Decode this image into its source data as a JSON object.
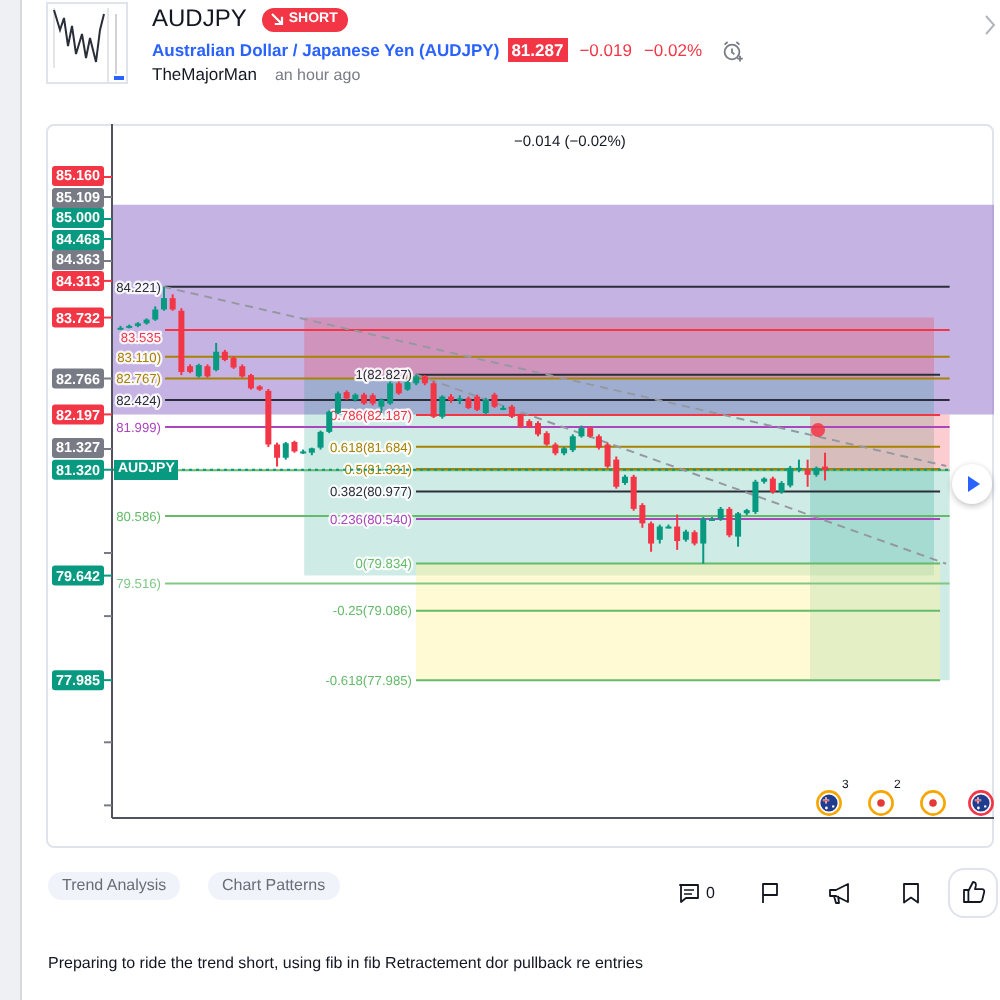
{
  "chart_data": {
    "type": "candlestick",
    "title": "AUDJPY",
    "subtitle": "Australian Dollar / Japanese Yen (AUDJPY)",
    "annotations": [
      "SHORT",
      "81.287",
      "−0.019",
      "−0.02%",
      "TheMajorMan",
      "an hour ago",
      "−0.014 (−0.02%)",
      {
        "text": "AUDJPY",
        "y": 81.32
      },
      "3",
      "2",
      "Trend Analysis",
      "Chart Patterns",
      "0",
      "Preparing to ride the trend short, using fib in fib Retractement dor pullback re entries",
      "85.160",
      "85.109",
      "85.000",
      "84.468",
      "84.363",
      "81.327"
    ],
    "categories": [
      null,
      null,
      null,
      null,
      null,
      null,
      null,
      null,
      null,
      null,
      null,
      null,
      null,
      null,
      null,
      null,
      null,
      null,
      null,
      null,
      null,
      null,
      null,
      null,
      null,
      null,
      null,
      null,
      null,
      null,
      null,
      null,
      null,
      null,
      null,
      null,
      null,
      null,
      null,
      null,
      null,
      null,
      null,
      null,
      null,
      null,
      null,
      null,
      null,
      null,
      null,
      null,
      null,
      null,
      null,
      null,
      null,
      null,
      null,
      null,
      null,
      null,
      null,
      null,
      null,
      null,
      null,
      null,
      null,
      null,
      null,
      null,
      null,
      null,
      null,
      null,
      null,
      null,
      null,
      null,
      null,
      null,
      null,
      null,
      null,
      null,
      null,
      null,
      null,
      null,
      null,
      null,
      null,
      null,
      null,
      null,
      null,
      null,
      null,
      null,
      null
    ],
    "ohlc": [
      [
        83.57,
        83.6,
        83.54,
        83.57
      ],
      [
        83.59,
        83.62,
        83.56,
        83.6
      ],
      [
        83.6,
        83.66,
        83.58,
        83.64
      ],
      [
        83.64,
        83.72,
        83.62,
        83.7
      ],
      [
        83.7,
        83.91,
        83.68,
        83.86
      ],
      [
        83.86,
        84.22,
        83.84,
        84.04
      ],
      [
        84.04,
        84.1,
        83.84,
        83.86
      ],
      [
        83.84,
        83.88,
        82.82,
        82.87
      ],
      [
        82.96,
        82.99,
        82.85,
        82.87
      ],
      [
        82.8,
        83.0,
        82.78,
        82.98
      ],
      [
        82.96,
        82.99,
        82.78,
        82.8
      ],
      [
        82.9,
        83.33,
        82.88,
        83.19
      ],
      [
        83.19,
        83.22,
        83.04,
        83.06
      ],
      [
        83.09,
        83.12,
        82.92,
        82.94
      ],
      [
        82.96,
        82.99,
        82.78,
        82.8
      ],
      [
        82.82,
        82.84,
        82.59,
        82.61
      ],
      [
        82.64,
        82.66,
        82.57,
        82.59
      ],
      [
        82.57,
        82.6,
        81.68,
        81.72
      ],
      [
        81.72,
        81.75,
        81.37,
        81.51
      ],
      [
        81.51,
        81.76,
        81.48,
        81.74
      ],
      [
        81.76,
        81.78,
        81.59,
        81.61
      ],
      [
        81.61,
        81.64,
        81.57,
        81.61
      ],
      [
        81.59,
        81.67,
        81.55,
        81.66
      ],
      [
        81.67,
        81.94,
        81.64,
        81.92
      ],
      [
        81.92,
        82.26,
        81.9,
        82.24
      ],
      [
        82.22,
        82.56,
        82.2,
        82.53
      ],
      [
        82.55,
        82.58,
        82.43,
        82.45
      ],
      [
        82.43,
        82.53,
        82.4,
        82.51
      ],
      [
        82.51,
        82.54,
        82.35,
        82.37
      ],
      [
        82.5,
        82.53,
        82.34,
        82.37
      ],
      [
        82.32,
        82.45,
        82.22,
        82.43
      ],
      [
        82.37,
        82.72,
        82.35,
        82.69
      ],
      [
        82.69,
        82.72,
        82.51,
        82.53
      ],
      [
        82.59,
        82.73,
        82.57,
        82.71
      ],
      [
        82.69,
        82.83,
        82.66,
        82.8
      ],
      [
        82.8,
        82.82,
        82.66,
        82.69
      ],
      [
        82.69,
        82.72,
        82.14,
        82.16
      ],
      [
        82.16,
        82.5,
        82.13,
        82.48
      ],
      [
        82.48,
        82.52,
        82.38,
        82.42
      ],
      [
        82.42,
        82.5,
        82.36,
        82.45
      ],
      [
        82.45,
        82.48,
        82.28,
        82.3
      ],
      [
        82.48,
        82.51,
        82.25,
        82.27
      ],
      [
        82.22,
        82.46,
        82.2,
        82.43
      ],
      [
        82.51,
        82.54,
        82.3,
        82.32
      ],
      [
        82.3,
        82.34,
        82.27,
        82.3
      ],
      [
        82.32,
        82.35,
        82.14,
        82.16
      ],
      [
        82.18,
        82.21,
        81.98,
        82.0
      ],
      [
        82.09,
        82.12,
        81.98,
        82.0
      ],
      [
        82.06,
        82.09,
        81.85,
        81.88
      ],
      [
        81.9,
        81.93,
        81.7,
        81.72
      ],
      [
        81.72,
        81.75,
        81.55,
        81.58
      ],
      [
        81.58,
        81.68,
        81.55,
        81.66
      ],
      [
        81.63,
        81.88,
        81.6,
        81.85
      ],
      [
        81.85,
        82.02,
        81.83,
        81.98
      ],
      [
        81.98,
        82.01,
        81.83,
        81.85
      ],
      [
        81.85,
        81.88,
        81.64,
        81.67
      ],
      [
        81.72,
        81.75,
        81.35,
        81.37
      ],
      [
        81.48,
        81.53,
        81.02,
        81.05
      ],
      [
        81.11,
        81.24,
        81.08,
        81.21
      ],
      [
        81.21,
        81.24,
        80.67,
        80.7
      ],
      [
        80.76,
        80.79,
        80.4,
        80.47
      ],
      [
        80.47,
        80.5,
        80.02,
        80.15
      ],
      [
        80.21,
        80.45,
        80.15,
        80.42
      ],
      [
        80.42,
        80.45,
        80.39,
        80.42
      ],
      [
        80.42,
        80.61,
        80.05,
        80.19
      ],
      [
        80.21,
        80.37,
        80.18,
        80.34
      ],
      [
        80.33,
        80.36,
        80.12,
        80.15
      ],
      [
        80.15,
        80.57,
        79.83,
        80.54
      ],
      [
        80.54,
        80.57,
        80.51,
        80.54
      ],
      [
        80.54,
        80.73,
        80.51,
        80.7
      ],
      [
        80.7,
        80.73,
        80.25,
        80.28
      ],
      [
        80.26,
        80.65,
        80.1,
        80.63
      ],
      [
        80.63,
        80.7,
        80.6,
        80.68
      ],
      [
        80.65,
        81.16,
        80.62,
        81.13
      ],
      [
        81.13,
        81.2,
        81.1,
        81.18
      ],
      [
        81.18,
        81.21,
        80.94,
        80.97
      ],
      [
        80.97,
        81.14,
        80.94,
        81.11
      ],
      [
        81.07,
        81.38,
        81.04,
        81.35
      ],
      [
        81.35,
        81.48,
        81.28,
        81.35
      ],
      [
        81.32,
        81.48,
        81.05,
        81.24
      ],
      [
        81.24,
        81.37,
        81.21,
        81.35
      ],
      [
        81.37,
        81.59,
        81.15,
        81.32
      ],
      null,
      null,
      null,
      null,
      null,
      null,
      null,
      null,
      null,
      null,
      null,
      null,
      null,
      null,
      null,
      null,
      null,
      null,
      null
    ],
    "colors": [
      "#089981",
      "#089981",
      "#089981",
      "#089981",
      "#089981",
      "#089981",
      "#f23645",
      "#f23645",
      "#f23645",
      "#089981",
      "#f23645",
      "#089981",
      "#f23645",
      "#f23645",
      "#f23645",
      "#f23645",
      "#f23645",
      "#f23645",
      "#f23645",
      "#089981",
      "#f23645",
      "#089981",
      "#089981",
      "#089981",
      "#089981",
      "#089981",
      "#f23645",
      "#089981",
      "#f23645",
      "#f23645",
      "#089981",
      "#089981",
      "#f23645",
      "#089981",
      "#089981",
      "#f23645",
      "#f23645",
      "#089981",
      "#f23645",
      "#089981",
      "#f23645",
      "#f23645",
      "#089981",
      "#f23645",
      "#089981",
      "#f23645",
      "#f23645",
      "#f23645",
      "#f23645",
      "#f23645",
      "#f23645",
      "#089981",
      "#089981",
      "#089981",
      "#f23645",
      "#f23645",
      "#f23645",
      "#f23645",
      "#089981",
      "#f23645",
      "#f23645",
      "#f23645",
      "#089981",
      "#089981",
      "#f23645",
      "#089981",
      "#f23645",
      "#089981",
      "#089981",
      "#089981",
      "#f23645",
      "#089981",
      "#089981",
      "#089981",
      "#089981",
      "#f23645",
      "#089981",
      "#089981",
      "#089981",
      "#f23645",
      "#089981",
      "#f23645",
      null,
      null,
      null,
      null,
      null,
      null,
      null,
      null,
      null,
      null,
      null,
      null,
      null,
      null,
      null,
      null,
      null,
      null,
      null
    ],
    "series": [
      {
        "type": "line",
        "color": "#9598a1",
        "line_style": "dashed",
        "values": [
          null,
          null,
          null,
          null,
          null,
          84.22,
          null,
          null,
          null,
          null,
          null,
          null,
          null,
          null,
          null,
          null,
          null,
          null,
          null,
          null,
          null,
          null,
          null,
          null,
          null,
          null,
          null,
          null,
          null,
          null,
          null,
          null,
          null,
          null,
          null,
          null,
          null,
          null,
          null,
          null,
          null,
          null,
          null,
          null,
          null,
          null,
          null,
          null,
          null,
          null,
          null,
          null,
          null,
          null,
          null,
          null,
          null,
          null,
          null,
          null,
          null,
          null,
          null,
          null,
          null,
          null,
          null,
          null,
          null,
          null,
          null,
          null,
          null,
          null,
          null,
          null,
          null,
          null,
          null,
          null,
          null,
          null,
          null,
          null,
          null,
          null,
          null,
          null,
          null,
          null,
          null,
          null,
          null,
          null,
          null,
          81.38,
          null,
          null,
          null,
          null,
          null
        ]
      },
      {
        "type": "line",
        "color": "#9598a1",
        "line_style": "dashed",
        "values": [
          null,
          null,
          null,
          null,
          null,
          null,
          null,
          null,
          null,
          null,
          null,
          null,
          null,
          null,
          null,
          null,
          null,
          null,
          null,
          null,
          null,
          null,
          null,
          null,
          null,
          null,
          null,
          null,
          null,
          null,
          null,
          null,
          null,
          null,
          82.83,
          null,
          null,
          null,
          null,
          null,
          null,
          null,
          null,
          null,
          null,
          null,
          null,
          null,
          null,
          null,
          null,
          null,
          null,
          null,
          null,
          null,
          null,
          null,
          null,
          null,
          null,
          null,
          null,
          null,
          null,
          null,
          null,
          null,
          null,
          null,
          null,
          null,
          null,
          null,
          null,
          null,
          null,
          null,
          null,
          null,
          null,
          null,
          null,
          null,
          null,
          null,
          null,
          null,
          null,
          null,
          null,
          null,
          null,
          null,
          null,
          79.83,
          null,
          null,
          null,
          null,
          null
        ]
      }
    ],
    "ylim": [
      75.8,
      86.8
    ],
    "yticks": [
      {
        "value": 84.313,
        "label": "84.313"
      },
      {
        "value": 83.732,
        "label": "83.732"
      },
      {
        "value": 82.766,
        "label": "82.766"
      },
      {
        "value": 82.197,
        "label": "82.197"
      },
      {
        "value": 81.32,
        "label": "81.320"
      },
      {
        "value": 80,
        "label": null
      },
      {
        "value": 79.642,
        "label": "79.642"
      },
      {
        "value": 79,
        "label": null
      },
      {
        "value": 77.985,
        "label": "77.985"
      },
      {
        "value": 77,
        "label": null
      },
      {
        "value": 76,
        "label": null
      }
    ],
    "tick_labels": "y",
    "ref_lines": [
      {
        "axis": "y",
        "value": 84.221,
        "label": "84.221)",
        "color": "#2a2e39"
      },
      {
        "axis": "y",
        "value": 83.535,
        "label": "83.535",
        "color": "#f23645"
      },
      {
        "axis": "y",
        "value": 83.11,
        "label": "83.110)",
        "color": "#a88200"
      },
      {
        "axis": "y",
        "value": 82.767,
        "label": "82.767)",
        "color": "#a88200"
      },
      {
        "axis": "y",
        "value": 82.424,
        "label": "82.424)",
        "color": "#2a2e39"
      },
      {
        "axis": "y",
        "value": 81.999,
        "label": "81.999)",
        "color": "#ab47bc"
      },
      {
        "axis": "y",
        "value": 81.313,
        "color": "#66bb6a"
      },
      {
        "axis": "y",
        "value": 80.586,
        "label": "80.586)",
        "color": "#66bb6a"
      },
      {
        "axis": "y",
        "value": 79.516,
        "label": "79.516)",
        "color": "#81c784"
      },
      {
        "axis": "y",
        "value": 82.827,
        "label": "1(82.827)",
        "color": "#2a2e39"
      },
      {
        "axis": "y",
        "value": 82.187,
        "label": "0.786(82.187)",
        "color": "#f23645"
      },
      {
        "axis": "y",
        "value": 81.684,
        "label": "0.618(81.684)",
        "color": "#a88200"
      },
      {
        "axis": "y",
        "value": 81.331,
        "label": "0.5(81.331)",
        "color": "#a88200"
      },
      {
        "axis": "y",
        "value": 80.977,
        "label": "0.382(80.977)",
        "color": "#2a2e39"
      },
      {
        "axis": "y",
        "value": 80.54,
        "label": "0.236(80.540)",
        "color": "#ab47bc"
      },
      {
        "axis": "y",
        "value": 79.834,
        "label": "0(79.834)",
        "color": "#66bb6a"
      },
      {
        "axis": "y",
        "value": 79.086,
        "label": "-0.25(79.086)",
        "color": "#66bb6a"
      },
      {
        "axis": "y",
        "value": 77.985,
        "label": "-0.618(77.985)",
        "color": "#66bb6a"
      },
      {
        "axis": "y",
        "value": 81.32,
        "color": "#089981",
        "line_style": "dotted"
      }
    ],
    "bands": [
      {
        "axis": "y",
        "from": 82.197,
        "to": 85.52,
        "color": "#9575cd"
      },
      {
        "axis": "y",
        "from": 82.766,
        "to": 83.732,
        "color": "#f23645"
      },
      {
        "axis": "y",
        "from": 79.642,
        "to": 82.766,
        "color": "#089981"
      },
      {
        "axis": "y",
        "from": 81.327,
        "to": 82.197,
        "color": "#f23645"
      },
      {
        "axis": "y",
        "from": 77.985,
        "to": 81.327,
        "color": "#089981"
      },
      {
        "axis": "y",
        "from": 77.985,
        "to": 79.834,
        "color": "#fff59d"
      }
    ]
  }
}
